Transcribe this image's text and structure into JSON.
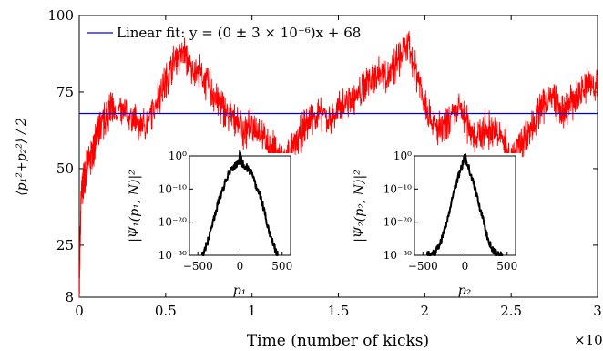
{
  "chart_data": [
    {
      "type": "line",
      "title": "",
      "xlabel": "Time (number of kicks)",
      "x_multiplier_label": "×10⁵",
      "ylabel": "⟨p₁²+p₂²⟩ / 2",
      "xlim": [
        0,
        3
      ],
      "ylim": [
        8,
        100
      ],
      "x_ticks": [
        "0",
        "0.5",
        "1",
        "1.5",
        "2",
        "2.5",
        "3"
      ],
      "y_ticks": [
        {
          "value": 8,
          "label": "8"
        },
        {
          "value": 25,
          "label": "25"
        },
        {
          "value": 50,
          "label": "50"
        },
        {
          "value": 75,
          "label": "75"
        },
        {
          "value": 100,
          "label": "100"
        }
      ],
      "legend": "top-left",
      "series": [
        {
          "color": "#ff0000",
          "x": [
            0,
            0.01,
            0.03,
            0.05,
            0.08,
            0.1,
            0.12,
            0.15,
            0.18,
            0.2,
            0.25,
            0.3,
            0.35,
            0.4,
            0.45,
            0.5,
            0.55,
            0.6,
            0.65,
            0.7,
            0.75,
            0.8,
            0.85,
            0.9,
            0.95,
            1.0,
            1.05,
            1.1,
            1.15,
            1.2,
            1.25,
            1.3,
            1.35,
            1.4,
            1.45,
            1.5,
            1.55,
            1.6,
            1.65,
            1.7,
            1.75,
            1.8,
            1.85,
            1.9,
            1.95,
            2.0,
            2.05,
            2.1,
            2.15,
            2.2,
            2.25,
            2.3,
            2.35,
            2.4,
            2.45,
            2.5,
            2.55,
            2.6,
            2.65,
            2.7,
            2.75,
            2.8,
            2.85,
            2.9,
            2.95,
            3.0
          ],
          "values": [
            8,
            40,
            48,
            52,
            55,
            60,
            63,
            66,
            70,
            69,
            68,
            67,
            64,
            65,
            73,
            78,
            85,
            88,
            83,
            81,
            77,
            72,
            68,
            67,
            62,
            64,
            62,
            57,
            55,
            53,
            58,
            63,
            67,
            68,
            66,
            69,
            72,
            73,
            77,
            80,
            82,
            80,
            86,
            90,
            82,
            72,
            64,
            62,
            66,
            70,
            64,
            60,
            63,
            62,
            60,
            53,
            58,
            62,
            67,
            72,
            73,
            67,
            72,
            75,
            78,
            77
          ]
        },
        {
          "name": "Linear fit: y = (0 ± 3 × 10⁻⁶)x + 68",
          "color": "#0000dd",
          "x": [
            0,
            3
          ],
          "values": [
            68,
            68
          ]
        }
      ]
    },
    {
      "type": "line",
      "xlabel": "p₁",
      "ylabel": "|Ψ₁(p₁, N)|²",
      "xlim": [
        -600,
        600
      ],
      "y_log_exponent_range": [
        -30,
        0
      ],
      "x_ticks": [
        "−500",
        "0",
        "500"
      ],
      "y_ticks": [
        "10⁰",
        "10⁻¹⁰",
        "10⁻²⁰",
        "10⁻³⁰"
      ],
      "series": [
        {
          "color": "#000000",
          "x": [
            -450,
            -430,
            -400,
            -350,
            -300,
            -250,
            -200,
            -150,
            -100,
            -50,
            -20,
            0,
            20,
            50,
            100,
            150,
            200,
            250,
            300,
            350,
            400,
            430,
            450
          ],
          "log10_values": [
            -30,
            -29,
            -27,
            -23,
            -18,
            -13,
            -10,
            -6,
            -4,
            -3,
            -2,
            1,
            -2,
            -3,
            -4,
            -6,
            -10,
            -13,
            -18,
            -23,
            -27,
            -29,
            -30
          ]
        }
      ]
    },
    {
      "type": "line",
      "xlabel": "p₂",
      "ylabel": "|Ψ₂(p₂, N)|²",
      "xlim": [
        -600,
        600
      ],
      "y_log_exponent_range": [
        -30,
        0
      ],
      "x_ticks": [
        "−500",
        "0",
        "500"
      ],
      "y_ticks": [
        "10⁰",
        "10⁻¹⁰",
        "10⁻²⁰",
        "10⁻³⁰"
      ],
      "series": [
        {
          "color": "#000000",
          "x": [
            -450,
            -400,
            -350,
            -300,
            -250,
            -200,
            -150,
            -100,
            -50,
            -20,
            0,
            20,
            50,
            100,
            150,
            200,
            250,
            300,
            350,
            400,
            450
          ],
          "log10_values": [
            -30,
            -30,
            -29,
            -27,
            -23,
            -18,
            -13,
            -8,
            -4,
            -2,
            1,
            -2,
            -4,
            -8,
            -13,
            -18,
            -23,
            -27,
            -29,
            -30,
            -30
          ]
        }
      ]
    }
  ]
}
